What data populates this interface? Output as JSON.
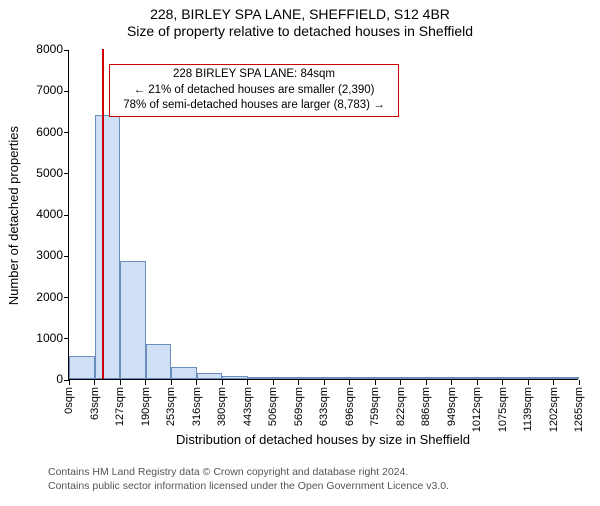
{
  "header": {
    "title": "228, BIRLEY SPA LANE, SHEFFIELD, S12 4BR",
    "subtitle": "Size of property relative to detached houses in Sheffield"
  },
  "chart": {
    "type": "histogram",
    "ylabel": "Number of detached properties",
    "xlabel": "Distribution of detached houses by size in Sheffield",
    "ylim": [
      0,
      8000
    ],
    "ytick_step": 1000,
    "y_ticks": [
      0,
      1000,
      2000,
      3000,
      4000,
      5000,
      6000,
      7000,
      8000
    ],
    "bin_width": 63,
    "x_ticks": [
      "0sqm",
      "63sqm",
      "127sqm",
      "190sqm",
      "253sqm",
      "316sqm",
      "380sqm",
      "443sqm",
      "506sqm",
      "569sqm",
      "633sqm",
      "696sqm",
      "759sqm",
      "822sqm",
      "886sqm",
      "949sqm",
      "1012sqm",
      "1075sqm",
      "1139sqm",
      "1202sqm",
      "1265sqm"
    ],
    "values": [
      550,
      6400,
      2850,
      850,
      300,
      150,
      80,
      50,
      30,
      20,
      15,
      12,
      10,
      8,
      6,
      5,
      4,
      3,
      2,
      2
    ],
    "bar_fill": "#cfe0f4",
    "bar_stroke": "#6a8fbf",
    "background_color": "#ffffff",
    "marker": {
      "position_sqm": 84,
      "color": "#cc0000",
      "width": 2
    },
    "info_box": {
      "line1": "228 BIRLEY SPA LANE: 84sqm",
      "line2": "← 21% of detached houses are smaller (2,390)",
      "line3": "78% of semi-detached houses are larger (8,783) →",
      "border_color": "#cc0000",
      "text_color": "#000000",
      "bg_color": "#ffffff"
    }
  },
  "footnote": {
    "line1": "Contains HM Land Registry data © Crown copyright and database right 2024.",
    "line2": "Contains public sector information licensed under the Open Government Licence v3.0."
  }
}
